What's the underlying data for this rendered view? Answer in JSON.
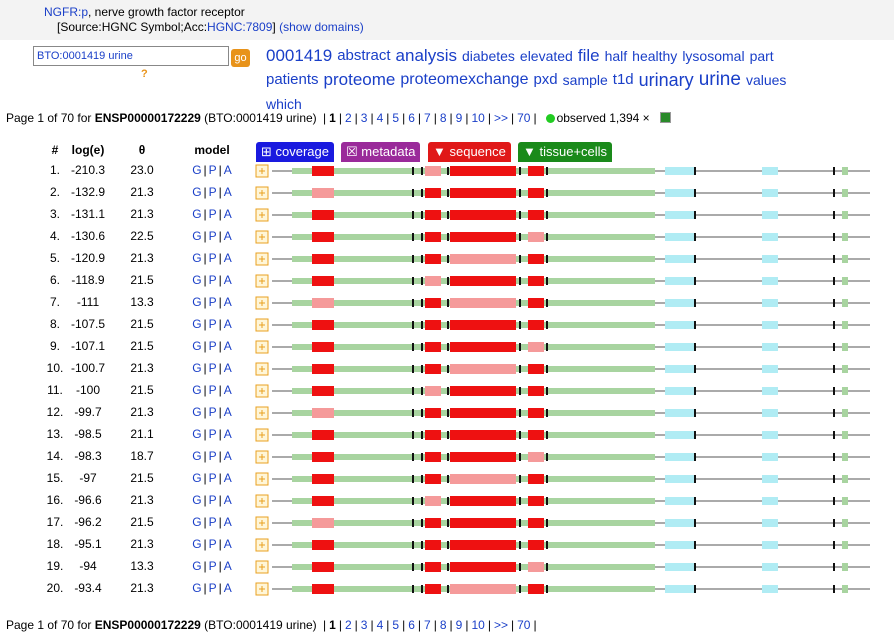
{
  "header": {
    "protein_link": "NGFR:p",
    "description": ", nerve growth factor receptor",
    "source_prefix": "[Source:HGNC Symbol;Acc:",
    "source_link": "HGNC:7809",
    "source_suffix": "]",
    "show_domains": "(show domains)"
  },
  "search": {
    "value": "BTO:0001419 urine",
    "button": "go",
    "help": "?"
  },
  "keywords": [
    "0001419",
    "abstract",
    "analysis",
    "diabetes",
    "elevated",
    "file",
    "half",
    "healthy",
    "lysosomal",
    "part",
    "patients",
    "proteome",
    "proteomexchange",
    "pxd",
    "sample",
    "t1d",
    "urinary",
    "urine",
    "values",
    "which"
  ],
  "pager": {
    "prefix": "Page 1 of 70 for ",
    "protein": "ENSP00000172229",
    "query": " (BTO:0001419 urine) ",
    "separator": "|",
    "current": "1",
    "pages": [
      "2",
      "3",
      "4",
      "5",
      "6",
      "7",
      "8",
      "9",
      "10",
      ">>",
      "70"
    ],
    "observed": "observed 1,394 ×"
  },
  "table": {
    "headers": [
      "#",
      "log(e)",
      "θ",
      "model"
    ],
    "model_links": [
      "G",
      "P",
      "A"
    ],
    "model_separator": "|",
    "buttons": [
      "⊞ coverage",
      "☒ metadata",
      "▼ sequence",
      "▼ tissue+cells"
    ],
    "rows": [
      [
        "1.",
        "-210.3",
        "23.0"
      ],
      [
        "2.",
        "-132.9",
        "21.3"
      ],
      [
        "3.",
        "-131.1",
        "21.3"
      ],
      [
        "4.",
        "-130.6",
        "22.5"
      ],
      [
        "5.",
        "-120.9",
        "21.3"
      ],
      [
        "6.",
        "-118.9",
        "21.5"
      ],
      [
        "7.",
        "-111",
        "13.3"
      ],
      [
        "8.",
        "-107.5",
        "21.5"
      ],
      [
        "9.",
        "-107.1",
        "21.5"
      ],
      [
        "10.",
        "-100.7",
        "21.3"
      ],
      [
        "11.",
        "-100",
        "21.5"
      ],
      [
        "12.",
        "-99.7",
        "21.3"
      ],
      [
        "13.",
        "-98.5",
        "21.1"
      ],
      [
        "14.",
        "-98.3",
        "18.7"
      ],
      [
        "15.",
        "-97",
        "21.5"
      ],
      [
        "16.",
        "-96.6",
        "21.3"
      ],
      [
        "17.",
        "-96.2",
        "21.5"
      ],
      [
        "18.",
        "-95.1",
        "21.3"
      ],
      [
        "19.",
        "-94",
        "13.3"
      ],
      [
        "20.",
        "-93.4",
        "21.3"
      ]
    ]
  }
}
